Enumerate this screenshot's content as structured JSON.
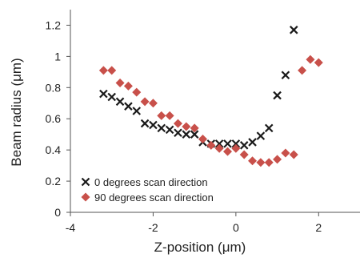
{
  "chart_data": {
    "type": "scatter",
    "title": "",
    "xlabel": "Z-position (μm)",
    "ylabel": "Beam radius (μm)",
    "xlim": [
      -4,
      3
    ],
    "ylim": [
      0,
      1.3
    ],
    "xticks": [
      -4,
      -2,
      0,
      2
    ],
    "yticks": [
      0,
      0.2,
      0.4,
      0.6,
      0.8,
      1,
      1.2
    ],
    "xtick_labels": [
      "-4",
      "-2",
      "0",
      "2"
    ],
    "ytick_labels": [
      "0",
      "0.2",
      "0.4",
      "0.6",
      "0.8",
      "1",
      "1.2"
    ],
    "grid": false,
    "legend_position": "lower-left",
    "series": [
      {
        "name": "0 degrees scan direction",
        "marker": "x",
        "color": "#1a1a1a",
        "x": [
          -3.2,
          -3.0,
          -2.8,
          -2.6,
          -2.4,
          -2.2,
          -2.0,
          -1.8,
          -1.6,
          -1.4,
          -1.2,
          -1.0,
          -0.8,
          -0.6,
          -0.4,
          -0.2,
          0.0,
          0.2,
          0.4,
          0.6,
          0.8,
          1.0,
          1.2,
          1.4
        ],
        "y": [
          0.76,
          0.74,
          0.71,
          0.68,
          0.65,
          0.57,
          0.56,
          0.54,
          0.53,
          0.51,
          0.5,
          0.5,
          0.45,
          0.44,
          0.44,
          0.44,
          0.44,
          0.43,
          0.45,
          0.49,
          0.54,
          0.75,
          0.88,
          1.17
        ]
      },
      {
        "name": "90 degrees scan direction",
        "marker": "diamond",
        "color": "#c8504a",
        "x": [
          -3.2,
          -3.0,
          -2.8,
          -2.6,
          -2.4,
          -2.2,
          -2.0,
          -1.8,
          -1.6,
          -1.4,
          -1.2,
          -1.0,
          -0.8,
          -0.6,
          -0.4,
          -0.2,
          0.0,
          0.2,
          0.4,
          0.6,
          0.8,
          1.0,
          1.2,
          1.4,
          1.6,
          1.8,
          2.0
        ],
        "y": [
          0.91,
          0.91,
          0.83,
          0.81,
          0.77,
          0.71,
          0.7,
          0.62,
          0.62,
          0.57,
          0.55,
          0.54,
          0.47,
          0.43,
          0.41,
          0.39,
          0.41,
          0.37,
          0.33,
          0.32,
          0.32,
          0.34,
          0.38,
          0.37,
          0.91,
          0.98,
          0.96
        ]
      }
    ]
  }
}
